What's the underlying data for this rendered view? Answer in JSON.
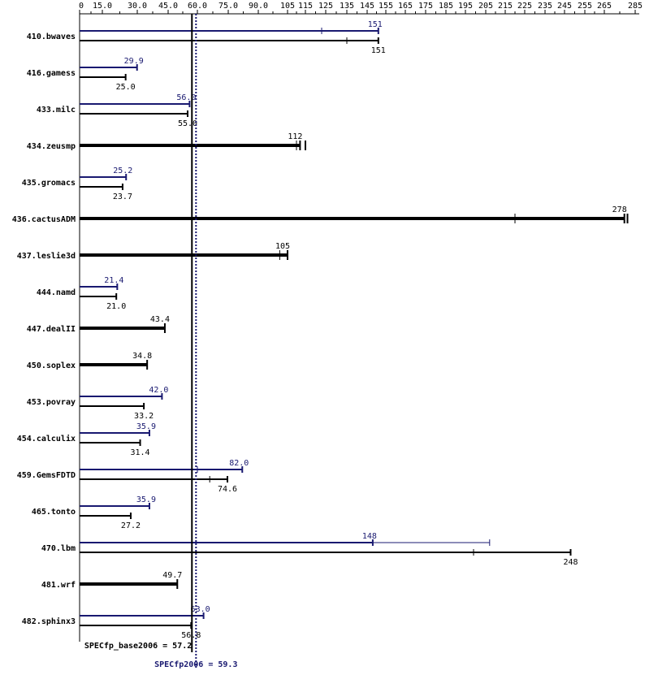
{
  "chart_data": {
    "type": "bar",
    "x_ticks": [
      "0",
      "15.0",
      "30.0",
      "45.0",
      "60.0",
      "75.0",
      "90.0",
      "105",
      "115",
      "125",
      "135",
      "145",
      "155",
      "165",
      "175",
      "185",
      "195",
      "205",
      "215",
      "225",
      "235",
      "245",
      "255",
      "265",
      "285"
    ],
    "xlim": [
      0,
      285
    ],
    "benchmarks": [
      {
        "name": "410.bwaves",
        "peak": 151,
        "peak_label": "151",
        "peak_min": 123,
        "base": 151,
        "base_label": "151",
        "base_min": 135
      },
      {
        "name": "416.gamess",
        "peak": 29.9,
        "peak_label": "29.9",
        "base": 25.0,
        "base_label": "25.0"
      },
      {
        "name": "433.milc",
        "peak": 56.0,
        "peak_label": "56.0",
        "base": 55.0,
        "base_label": "55.0"
      },
      {
        "name": "434.zeusmp",
        "base": 112,
        "base_label": "112",
        "base_min": 110,
        "base_max": 115
      },
      {
        "name": "435.gromacs",
        "peak": 25.2,
        "peak_label": "25.2",
        "base": 23.7,
        "base_label": "23.7"
      },
      {
        "name": "436.cactusADM",
        "base": 278,
        "base_label": "278",
        "base_min": 220,
        "base_max": 280
      },
      {
        "name": "437.leslie3d",
        "base": 105,
        "base_label": "105",
        "base_min": 101
      },
      {
        "name": "444.namd",
        "peak": 21.4,
        "peak_label": "21.4",
        "base": 21.0,
        "base_label": "21.0"
      },
      {
        "name": "447.dealII",
        "base": 43.4,
        "base_label": "43.4"
      },
      {
        "name": "450.soplex",
        "base": 34.8,
        "base_label": "34.8"
      },
      {
        "name": "453.povray",
        "peak": 42.0,
        "peak_label": "42.0",
        "base": 33.2,
        "base_label": "33.2"
      },
      {
        "name": "454.calculix",
        "peak": 35.9,
        "peak_label": "35.9",
        "base": 31.4,
        "base_label": "31.4"
      },
      {
        "name": "459.GemsFDTD",
        "peak": 82.0,
        "peak_label": "82.0",
        "peak_min": 60,
        "base": 74.6,
        "base_label": "74.6",
        "base_min": 66
      },
      {
        "name": "465.tonto",
        "peak": 35.9,
        "peak_label": "35.9",
        "base": 27.2,
        "base_label": "27.2"
      },
      {
        "name": "470.lbm",
        "peak": 148,
        "peak_label": "148",
        "peak_max": 207,
        "base": 248,
        "base_label": "248",
        "base_min": 199
      },
      {
        "name": "481.wrf",
        "base": 49.7,
        "base_label": "49.7"
      },
      {
        "name": "482.sphinx3",
        "peak": 63.0,
        "peak_label": "63.0",
        "base": 56.8,
        "base_label": "56.8"
      }
    ],
    "base_summary": {
      "label": "SPECfp_base2006 = 57.2",
      "value": 57.2
    },
    "peak_summary": {
      "label": "SPECfp2006 = 59.3",
      "value": 59.3
    },
    "colors": {
      "base": "#000000",
      "peak": "#191970"
    }
  }
}
